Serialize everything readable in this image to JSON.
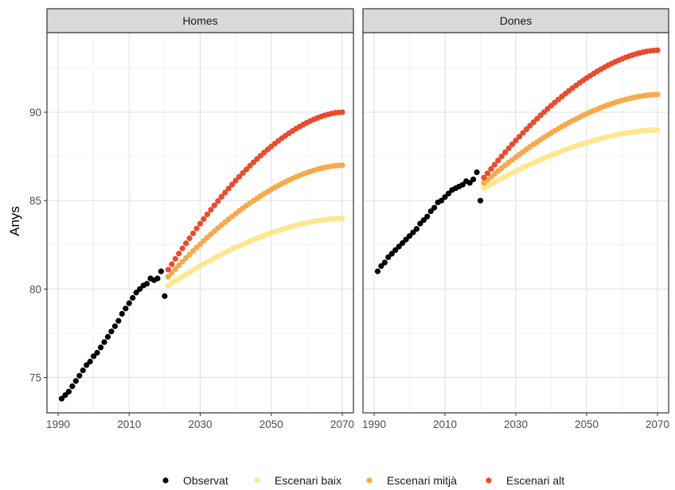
{
  "chart_data": {
    "type": "scatter",
    "ylabel": "Anys",
    "xlabel": "",
    "xlim": [
      1990,
      2070
    ],
    "ylim": [
      73,
      94.5
    ],
    "xticks": [
      "1990",
      "2010",
      "2030",
      "2050",
      "2070"
    ],
    "yticks": [
      "75",
      "80",
      "85",
      "90"
    ],
    "grid": true,
    "legend_position": "bottom",
    "panels": [
      {
        "title": "Homes",
        "observed": {
          "x": [
            1991,
            1992,
            1993,
            1994,
            1995,
            1996,
            1997,
            1998,
            1999,
            2000,
            2001,
            2002,
            2003,
            2004,
            2005,
            2006,
            2007,
            2008,
            2009,
            2010,
            2011,
            2012,
            2013,
            2014,
            2015,
            2016,
            2017,
            2018,
            2019,
            2020
          ],
          "y": [
            73.8,
            74.0,
            74.2,
            74.5,
            74.8,
            75.1,
            75.4,
            75.7,
            75.9,
            76.2,
            76.4,
            76.7,
            77.0,
            77.3,
            77.6,
            77.9,
            78.2,
            78.6,
            78.9,
            79.2,
            79.5,
            79.8,
            80.0,
            80.2,
            80.3,
            80.6,
            80.5,
            80.6,
            81.0,
            79.6
          ]
        },
        "scenarios": [
          {
            "name": "Escenari baix",
            "x_start": 2021,
            "x_end": 2070,
            "y_start": 80.2,
            "y_end": 84.0
          },
          {
            "name": "Escenari mitjà",
            "x_start": 2021,
            "x_end": 2070,
            "y_start": 80.7,
            "y_end": 87.0
          },
          {
            "name": "Escenari alt",
            "x_start": 2021,
            "x_end": 2070,
            "y_start": 81.1,
            "y_end": 90.0
          }
        ]
      },
      {
        "title": "Dones",
        "observed": {
          "x": [
            1991,
            1992,
            1993,
            1994,
            1995,
            1996,
            1997,
            1998,
            1999,
            2000,
            2001,
            2002,
            2003,
            2004,
            2005,
            2006,
            2007,
            2008,
            2009,
            2010,
            2011,
            2012,
            2013,
            2014,
            2015,
            2016,
            2017,
            2018,
            2019,
            2020
          ],
          "y": [
            81.0,
            81.3,
            81.5,
            81.8,
            82.0,
            82.2,
            82.4,
            82.6,
            82.8,
            83.0,
            83.2,
            83.4,
            83.7,
            83.9,
            84.1,
            84.4,
            84.6,
            84.9,
            85.0,
            85.2,
            85.4,
            85.6,
            85.7,
            85.8,
            85.9,
            86.1,
            86.0,
            86.2,
            86.6,
            85.0
          ]
        },
        "scenarios": [
          {
            "name": "Escenari baix",
            "x_start": 2021,
            "x_end": 2070,
            "y_start": 85.7,
            "y_end": 89.0
          },
          {
            "name": "Escenari mitjà",
            "x_start": 2021,
            "x_end": 2070,
            "y_start": 86.0,
            "y_end": 91.0
          },
          {
            "name": "Escenari alt",
            "x_start": 2021,
            "x_end": 2070,
            "y_start": 86.3,
            "y_end": 93.5
          }
        ]
      }
    ],
    "legend": [
      {
        "label": "Observat",
        "color": "#000000"
      },
      {
        "label": "Escenari baix",
        "color": "#ffe690"
      },
      {
        "label": "Escenari mitjà",
        "color": "#f8a94a"
      },
      {
        "label": "Escenari alt",
        "color": "#ec4a2b"
      }
    ]
  }
}
